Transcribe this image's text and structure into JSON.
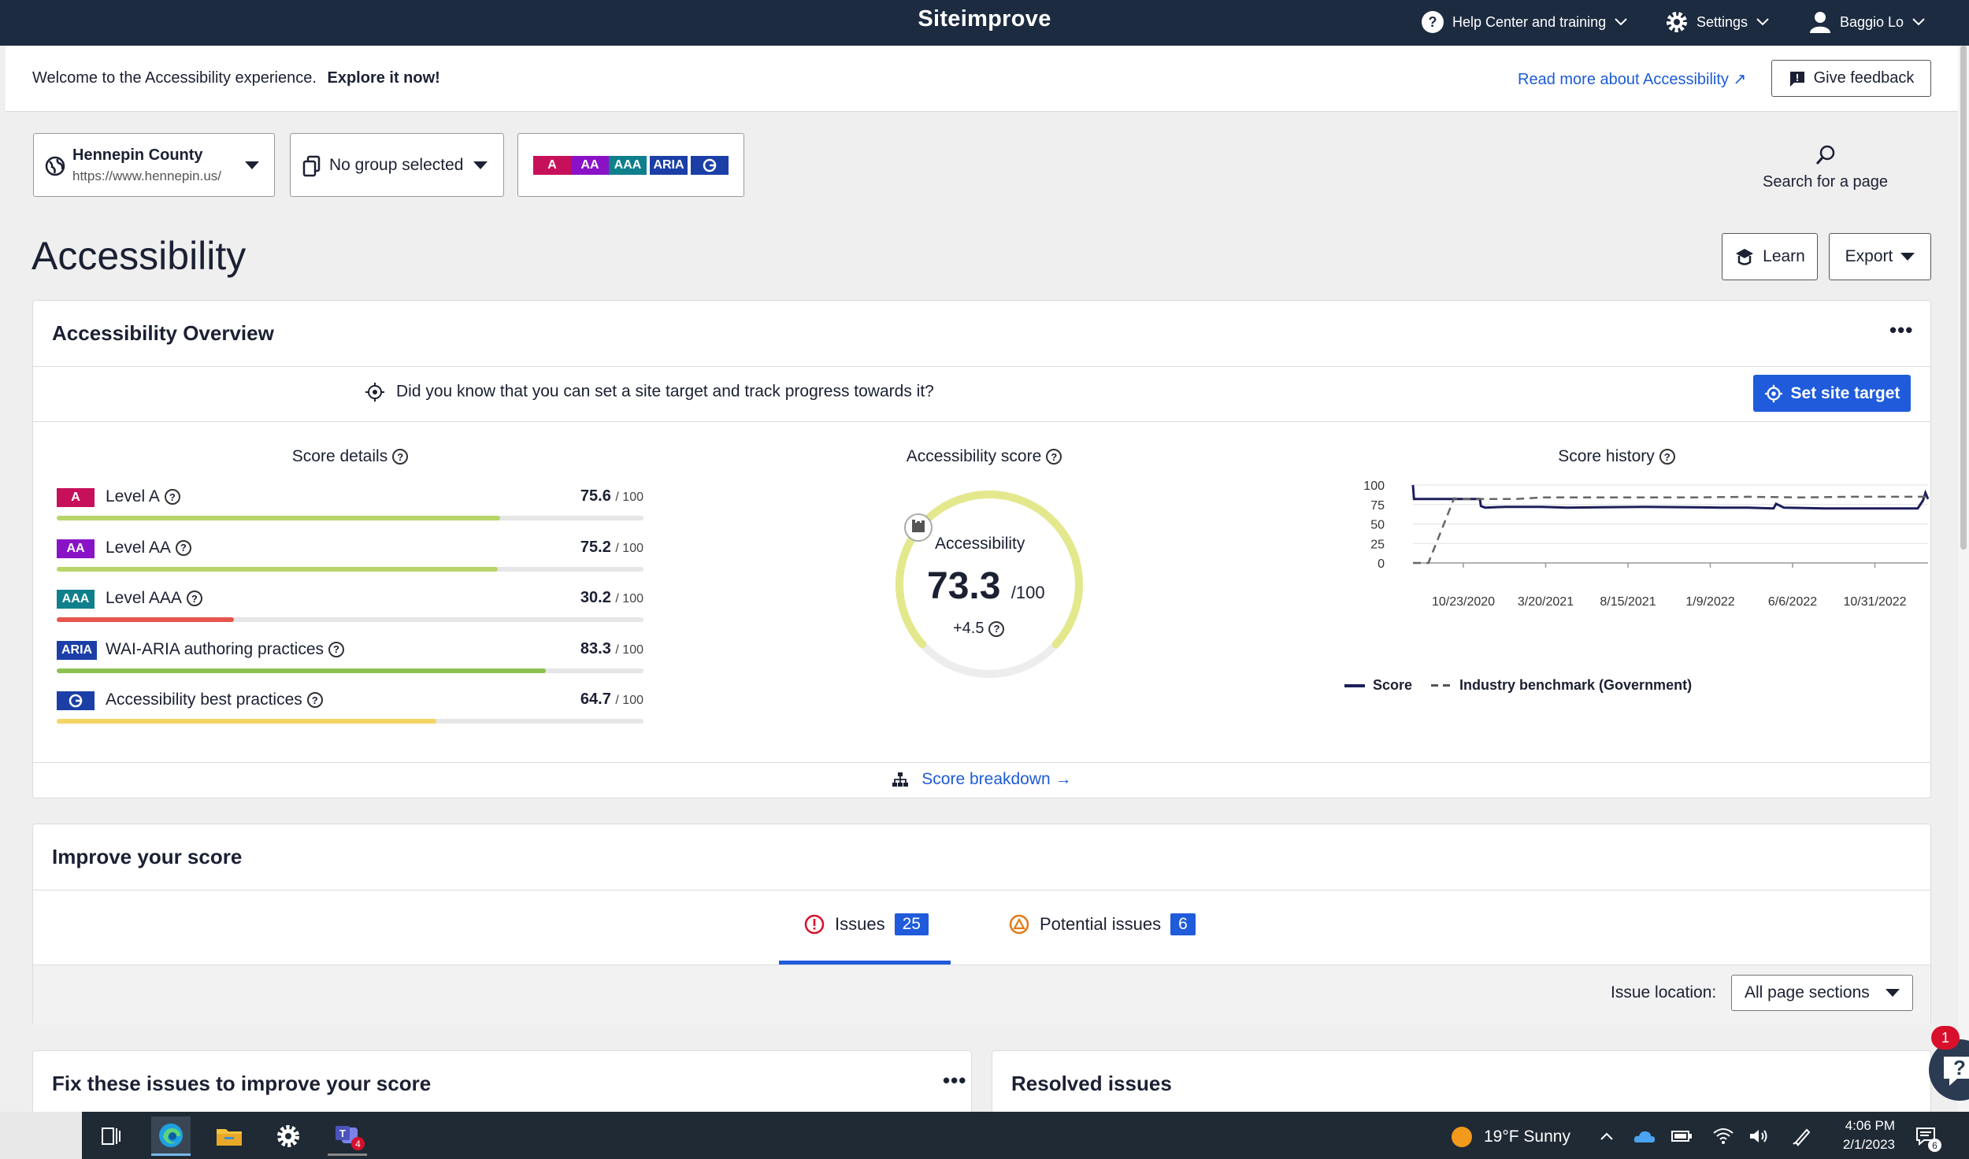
{
  "topbar": {
    "brand": "Siteimprove",
    "help_label": "Help Center and training",
    "settings_label": "Settings",
    "user_label": "Baggio Lo"
  },
  "welcome": {
    "intro": "Welcome to the Accessibility experience.",
    "explore": "Explore it now!",
    "read_more": "Read more about Accessibility ↗",
    "feedback": "Give feedback"
  },
  "selectors": {
    "site_name": "Hennepin County",
    "site_url": "https://www.hennepin.us/",
    "group": "No group selected",
    "levels": [
      "A",
      "AA",
      "AAA",
      "ARIA"
    ]
  },
  "search": {
    "label": "Search for a page"
  },
  "page": {
    "title": "Accessibility",
    "learn": "Learn",
    "export": "Export"
  },
  "overview": {
    "title": "Accessibility Overview",
    "more": "•••",
    "target_prompt": "Did you know that you can set a site target and track progress towards it?",
    "target_button": "Set site target",
    "score_details_title": "Score details",
    "accessibility_score_title": "Accessibility score",
    "score_history_title": "Score history",
    "breakdown_link": "Score breakdown →",
    "levels": [
      {
        "badge": "A",
        "name": "Level A",
        "score": "75.6",
        "max": "/ 100",
        "value": 75.6,
        "color": "#c7105a",
        "bar": "#b7d56a"
      },
      {
        "badge": "AA",
        "name": "Level AA",
        "score": "75.2",
        "max": "/ 100",
        "value": 75.2,
        "color": "#8a12c6",
        "bar": "#b7d56a"
      },
      {
        "badge": "AAA",
        "name": "Level AAA",
        "score": "30.2",
        "max": "/ 100",
        "value": 30.2,
        "color": "#0f7f8c",
        "bar": "#e8554d"
      },
      {
        "badge": "ARIA",
        "name": "WAI-ARIA authoring practices",
        "score": "83.3",
        "max": "/ 100",
        "value": 83.3,
        "color": "#1b3fa6",
        "bar": "#8cc152"
      },
      {
        "badge": "",
        "name": "Accessibility best practices",
        "score": "64.7",
        "max": "/ 100",
        "value": 64.7,
        "color": "#1b3fa6",
        "bar": "#f5d466"
      }
    ],
    "gauge": {
      "label": "Accessibility",
      "score": "73.3",
      "max": "/100",
      "value": 73.3,
      "change": "+4.5"
    }
  },
  "chart_data": {
    "type": "line",
    "title": "Score history",
    "ylim": [
      0,
      100
    ],
    "yticks": [
      0,
      25,
      50,
      75,
      100
    ],
    "x_ticks": [
      "10/23/2020",
      "3/20/2021",
      "8/15/2021",
      "1/9/2022",
      "6/6/2022",
      "10/31/2022"
    ],
    "series": [
      {
        "name": "Score",
        "color": "#1d1f5c",
        "points": [
          [
            0,
            100
          ],
          [
            0.2,
            82
          ],
          [
            10,
            82
          ],
          [
            13,
            82
          ],
          [
            13.2,
            73
          ],
          [
            14,
            71
          ],
          [
            18,
            72
          ],
          [
            25,
            72
          ],
          [
            30,
            71
          ],
          [
            45,
            72
          ],
          [
            60,
            71
          ],
          [
            65,
            71
          ],
          [
            70,
            70
          ],
          [
            70.5,
            76
          ],
          [
            72,
            71
          ],
          [
            80,
            70
          ],
          [
            90,
            70
          ],
          [
            98,
            70
          ],
          [
            99,
            80
          ],
          [
            99.5,
            90
          ],
          [
            100,
            82
          ]
        ]
      },
      {
        "name": "Industry benchmark (Government)",
        "color": "#666666",
        "dashed": true,
        "points": [
          [
            0,
            0
          ],
          [
            3,
            0
          ],
          [
            8,
            83
          ],
          [
            10,
            82
          ],
          [
            20,
            82
          ],
          [
            25,
            84
          ],
          [
            40,
            84
          ],
          [
            55,
            84
          ],
          [
            65,
            85
          ],
          [
            75,
            84
          ],
          [
            85,
            85
          ],
          [
            92,
            85
          ],
          [
            100,
            85
          ]
        ]
      }
    ]
  },
  "improve": {
    "title": "Improve your score",
    "tab_issues": "Issues",
    "tab_issues_count": "25",
    "tab_potential": "Potential issues",
    "tab_potential_count": "6",
    "issue_location_label": "Issue location:",
    "issue_location_value": "All page sections"
  },
  "fix": {
    "title": "Fix these issues to improve your score",
    "more": "•••"
  },
  "resolved": {
    "title": "Resolved issues"
  },
  "help_widget": {
    "count": "1"
  },
  "taskbar": {
    "weather": "19°F  Sunny",
    "time": "4:06 PM",
    "date": "2/1/2023",
    "teams_badge": "4",
    "notifications": "6"
  }
}
